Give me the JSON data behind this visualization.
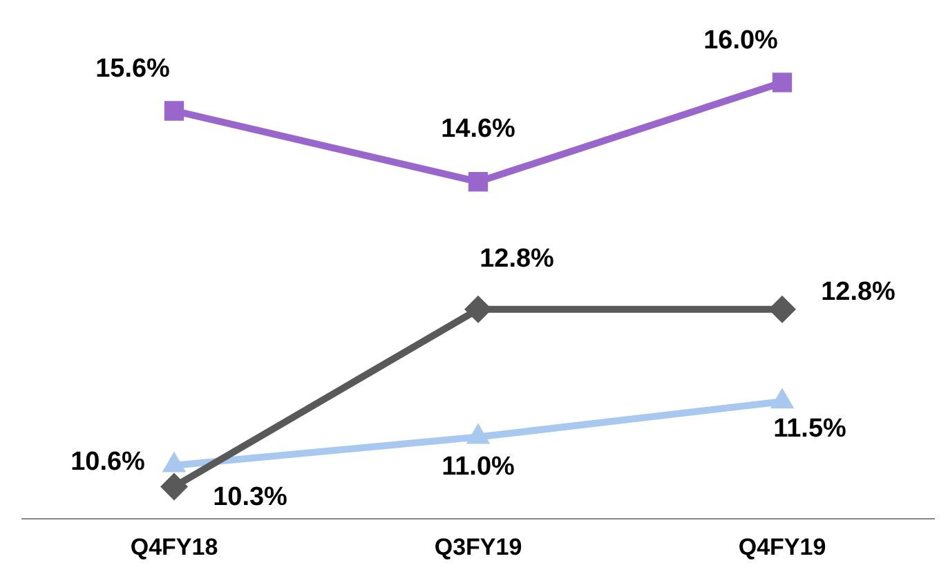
{
  "chart_data": {
    "type": "line",
    "categories": [
      "Q4FY18",
      "Q3FY19",
      "Q4FY19"
    ],
    "series": [
      {
        "color": "#9966cc",
        "marker": "square",
        "values": [
          15.6,
          14.6,
          16.0
        ],
        "value_labels": [
          "15.6%",
          "14.6%",
          "16.0%"
        ]
      },
      {
        "color": "#595959",
        "marker": "diamond",
        "values": [
          10.3,
          12.8,
          12.8
        ],
        "value_labels": [
          "10.3%",
          "12.8%",
          "12.8%"
        ]
      },
      {
        "color": "#a9c8f0",
        "marker": "triangle",
        "values": [
          10.6,
          11.0,
          11.5
        ],
        "value_labels": [
          "10.6%",
          "11.0%",
          "11.5%"
        ]
      }
    ],
    "tick_labels": "x",
    "grid": false,
    "legend": false,
    "line_style": "solid"
  }
}
